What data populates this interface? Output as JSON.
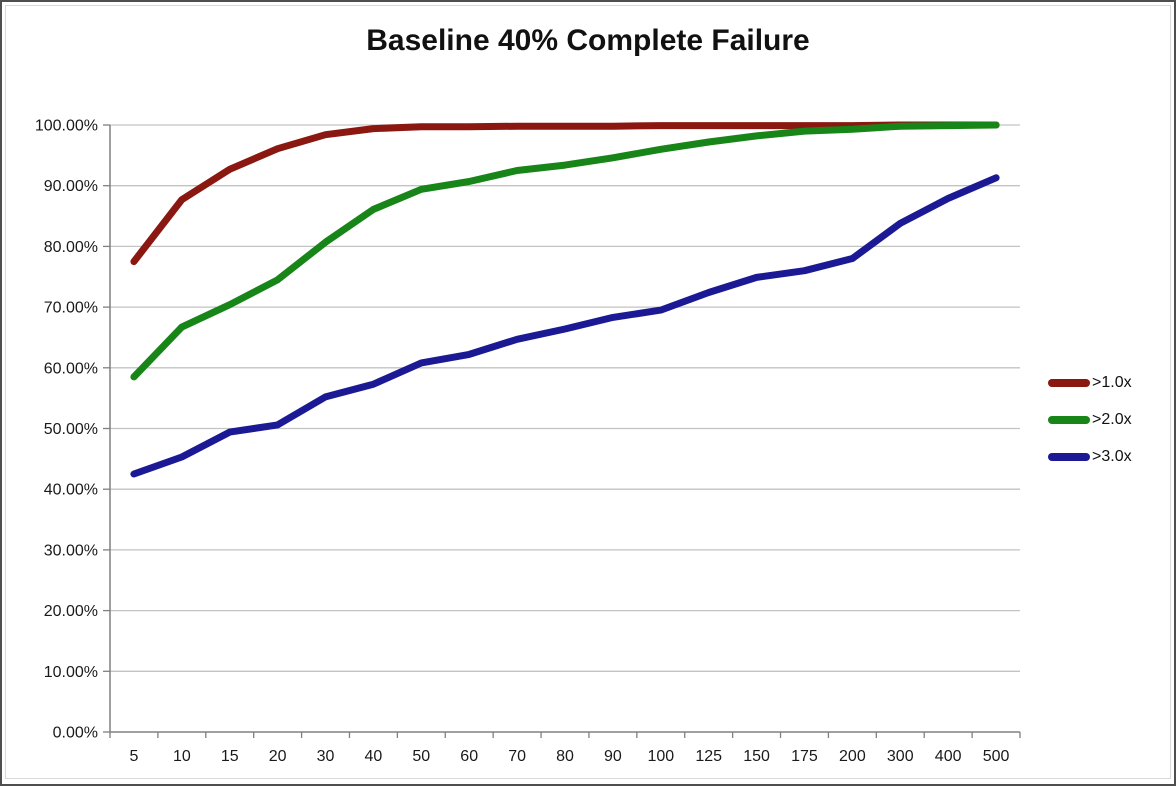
{
  "title": "Baseline 40% Complete Failure",
  "legend": {
    "items": [
      {
        "label": ">1.0x",
        "color": "#8b1711"
      },
      {
        "label": ">2.0x",
        "color": "#178517"
      },
      {
        "label": ">3.0x",
        "color": "#1b1a94"
      }
    ]
  },
  "axes": {
    "y_ticks": [
      {
        "label": "100.00%",
        "value": 100
      },
      {
        "label": "90.00%",
        "value": 90
      },
      {
        "label": "80.00%",
        "value": 80
      },
      {
        "label": "70.00%",
        "value": 70
      },
      {
        "label": "60.00%",
        "value": 60
      },
      {
        "label": "50.00%",
        "value": 50
      },
      {
        "label": "40.00%",
        "value": 40
      },
      {
        "label": "30.00%",
        "value": 30
      },
      {
        "label": "20.00%",
        "value": 20
      },
      {
        "label": "10.00%",
        "value": 10
      },
      {
        "label": "0.00%",
        "value": 0
      }
    ],
    "x_tick_labels": [
      "5",
      "10",
      "15",
      "20",
      "30",
      "40",
      "50",
      "60",
      "70",
      "80",
      "90",
      "100",
      "125",
      "150",
      "175",
      "200",
      "300",
      "400",
      "500"
    ]
  },
  "colors": {
    "axis": "#808080",
    "gridline": "#c3c3c3",
    "tick_text": "#1a1a1a",
    "outer_border": "#4f4f4f",
    "inner_border": "#d9d9d9",
    "background": "#ffffff"
  },
  "chart_data": {
    "type": "line",
    "title": "Baseline 40% Complete Failure",
    "xlabel": "",
    "ylabel": "",
    "ylim": [
      0,
      100
    ],
    "y_tick_step": 10,
    "y_tick_format": "0.00%",
    "grid": "horizontal",
    "legend_position": "right",
    "categories": [
      5,
      10,
      15,
      20,
      30,
      40,
      50,
      60,
      70,
      80,
      90,
      100,
      125,
      150,
      175,
      200,
      300,
      400,
      500
    ],
    "series": [
      {
        "name": ">1.0x",
        "color": "#8b1711",
        "values": [
          77.5,
          87.7,
          92.7,
          96.1,
          98.4,
          99.4,
          99.7,
          99.7,
          99.8,
          99.8,
          99.8,
          99.9,
          99.9,
          99.9,
          99.9,
          99.9,
          100.0,
          100.0,
          100.0
        ]
      },
      {
        "name": ">2.0x",
        "color": "#178517",
        "values": [
          58.5,
          66.7,
          70.4,
          74.5,
          80.7,
          86.1,
          89.4,
          90.7,
          92.5,
          93.4,
          94.6,
          96.0,
          97.2,
          98.2,
          99.0,
          99.3,
          99.8,
          99.9,
          100.0
        ]
      },
      {
        "name": ">3.0x",
        "color": "#1b1a94",
        "values": [
          42.5,
          45.3,
          49.4,
          50.6,
          55.2,
          57.3,
          60.8,
          62.2,
          64.7,
          66.4,
          68.3,
          69.5,
          72.4,
          74.9,
          76.0,
          78.0,
          83.8,
          87.9,
          91.3
        ]
      }
    ]
  }
}
